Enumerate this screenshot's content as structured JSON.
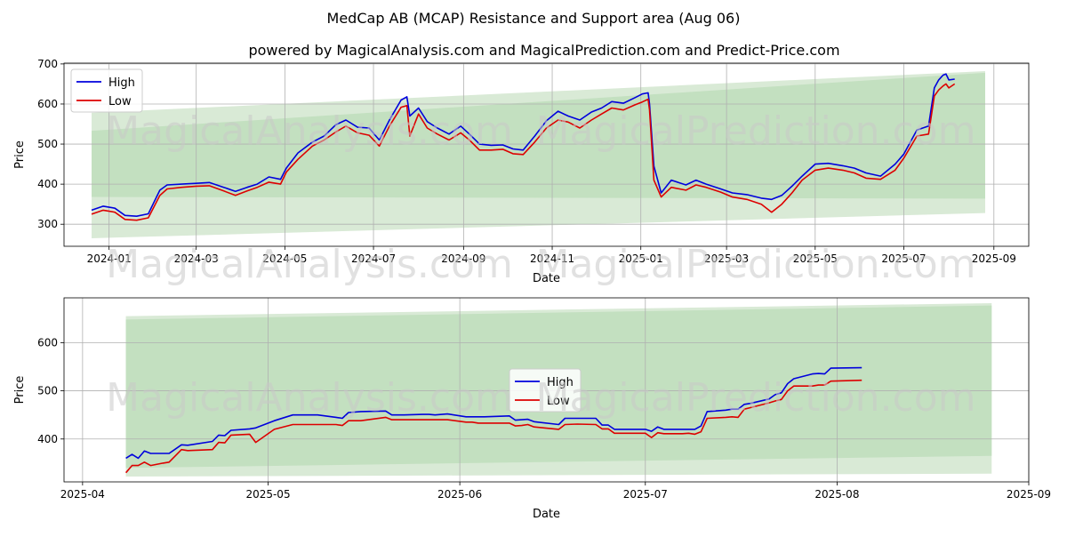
{
  "title": "MedCap AB (MCAP) Resistance and Support area (Aug 06)",
  "subtitle": "powered by MagicalAnalysis.com and MagicalPrediction.com and Predict-Price.com",
  "watermark_left": "MagicalAnalysis.com",
  "watermark_right": "MagicalPrediction.com",
  "colors": {
    "high": "#0000dd",
    "low": "#dd0000",
    "band_outer": "#d9ead6",
    "band_inner": "#c3e0c0",
    "grid": "#b0b0b0"
  },
  "chart_data": [
    {
      "type": "line",
      "title": "MedCap AB (MCAP) Resistance and Support area (Aug 06)",
      "xlabel": "Date",
      "ylabel": "Price",
      "ylim": [
        245,
        702
      ],
      "xlim": [
        "2023-12-01",
        "2025-09-25"
      ],
      "x_ticks": [
        "2024-01-01",
        "2024-03-01",
        "2024-05-01",
        "2024-07-01",
        "2024-09-01",
        "2024-11-01",
        "2025-01-01",
        "2025-03-01",
        "2025-05-01",
        "2025-07-01",
        "2025-09-01"
      ],
      "x_tick_labels": [
        "2024-01",
        "2024-03",
        "2024-05",
        "2024-07",
        "2024-09",
        "2024-11",
        "2025-01",
        "2025-03",
        "2025-05",
        "2025-07",
        "2025-09"
      ],
      "y_ticks": [
        300,
        400,
        500,
        600,
        700
      ],
      "y_tick_labels": [
        "300",
        "400",
        "500",
        "600",
        "700"
      ],
      "legend": {
        "position": "top-left",
        "entries": [
          "High",
          "Low"
        ]
      },
      "bands": [
        {
          "name": "outer",
          "x": [
            "2023-12-20",
            "2025-08-26"
          ],
          "upper": [
            578,
            682
          ],
          "lower": [
            265,
            328
          ]
        },
        {
          "name": "inner",
          "x": [
            "2023-12-20",
            "2025-08-26"
          ],
          "upper": [
            533,
            678
          ],
          "lower": [
            368,
            364
          ]
        }
      ],
      "series": [
        {
          "name": "High",
          "x": [
            "2023-12-20",
            "2023-12-28",
            "2024-01-05",
            "2024-01-12",
            "2024-01-20",
            "2024-01-28",
            "2024-02-05",
            "2024-02-10",
            "2024-02-20",
            "2024-03-01",
            "2024-03-10",
            "2024-03-20",
            "2024-03-28",
            "2024-04-05",
            "2024-04-12",
            "2024-04-20",
            "2024-04-28",
            "2024-05-02",
            "2024-05-10",
            "2024-05-20",
            "2024-05-28",
            "2024-06-05",
            "2024-06-12",
            "2024-06-20",
            "2024-06-28",
            "2024-07-05",
            "2024-07-12",
            "2024-07-20",
            "2024-07-24",
            "2024-07-26",
            "2024-08-01",
            "2024-08-07",
            "2024-08-14",
            "2024-08-22",
            "2024-08-30",
            "2024-09-05",
            "2024-09-12",
            "2024-09-20",
            "2024-09-28",
            "2024-10-05",
            "2024-10-12",
            "2024-10-20",
            "2024-10-28",
            "2024-11-05",
            "2024-11-12",
            "2024-11-20",
            "2024-11-28",
            "2024-12-05",
            "2024-12-12",
            "2024-12-20",
            "2024-12-28",
            "2025-01-02",
            "2025-01-06",
            "2025-01-07",
            "2025-01-10",
            "2025-01-15",
            "2025-01-22",
            "2025-02-01",
            "2025-02-08",
            "2025-02-15",
            "2025-02-25",
            "2025-03-05",
            "2025-03-15",
            "2025-03-25",
            "2025-04-01",
            "2025-04-08",
            "2025-04-15",
            "2025-04-22",
            "2025-05-01",
            "2025-05-10",
            "2025-05-20",
            "2025-05-28",
            "2025-06-05",
            "2025-06-15",
            "2025-06-25",
            "2025-07-01",
            "2025-07-10",
            "2025-07-18",
            "2025-07-22",
            "2025-07-25",
            "2025-07-28",
            "2025-07-30",
            "2025-08-01",
            "2025-08-05"
          ],
          "values": [
            335,
            345,
            340,
            322,
            320,
            326,
            385,
            398,
            400,
            402,
            404,
            392,
            382,
            392,
            400,
            418,
            412,
            440,
            478,
            505,
            520,
            548,
            560,
            542,
            540,
            510,
            560,
            610,
            618,
            570,
            590,
            556,
            540,
            525,
            545,
            525,
            500,
            497,
            498,
            488,
            485,
            520,
            558,
            582,
            570,
            560,
            580,
            590,
            606,
            602,
            616,
            625,
            628,
            600,
            445,
            378,
            410,
            398,
            410,
            400,
            388,
            378,
            374,
            365,
            362,
            372,
            395,
            420,
            450,
            452,
            446,
            440,
            428,
            420,
            450,
            475,
            535,
            545,
            640,
            660,
            672,
            675,
            660,
            662
          ]
        },
        {
          "name": "Low",
          "x": [
            "2023-12-20",
            "2023-12-28",
            "2024-01-05",
            "2024-01-12",
            "2024-01-20",
            "2024-01-28",
            "2024-02-05",
            "2024-02-10",
            "2024-02-20",
            "2024-03-01",
            "2024-03-10",
            "2024-03-20",
            "2024-03-28",
            "2024-04-05",
            "2024-04-12",
            "2024-04-20",
            "2024-04-28",
            "2024-05-02",
            "2024-05-10",
            "2024-05-20",
            "2024-05-28",
            "2024-06-05",
            "2024-06-12",
            "2024-06-20",
            "2024-06-28",
            "2024-07-05",
            "2024-07-12",
            "2024-07-20",
            "2024-07-24",
            "2024-07-26",
            "2024-08-01",
            "2024-08-07",
            "2024-08-14",
            "2024-08-22",
            "2024-08-30",
            "2024-09-05",
            "2024-09-12",
            "2024-09-20",
            "2024-09-28",
            "2024-10-05",
            "2024-10-12",
            "2024-10-20",
            "2024-10-28",
            "2024-11-05",
            "2024-11-12",
            "2024-11-20",
            "2024-11-28",
            "2024-12-05",
            "2024-12-12",
            "2024-12-20",
            "2024-12-28",
            "2025-01-02",
            "2025-01-06",
            "2025-01-07",
            "2025-01-10",
            "2025-01-15",
            "2025-01-22",
            "2025-02-01",
            "2025-02-08",
            "2025-02-15",
            "2025-02-25",
            "2025-03-05",
            "2025-03-15",
            "2025-03-25",
            "2025-04-01",
            "2025-04-08",
            "2025-04-15",
            "2025-04-22",
            "2025-05-01",
            "2025-05-10",
            "2025-05-20",
            "2025-05-28",
            "2025-06-05",
            "2025-06-15",
            "2025-06-25",
            "2025-07-01",
            "2025-07-10",
            "2025-07-18",
            "2025-07-22",
            "2025-07-25",
            "2025-07-28",
            "2025-07-30",
            "2025-08-01",
            "2025-08-05"
          ],
          "values": [
            325,
            335,
            330,
            312,
            310,
            316,
            372,
            388,
            392,
            395,
            396,
            383,
            372,
            383,
            392,
            405,
            400,
            430,
            462,
            495,
            510,
            530,
            545,
            528,
            522,
            495,
            545,
            592,
            596,
            520,
            575,
            540,
            525,
            510,
            528,
            510,
            485,
            485,
            487,
            476,
            474,
            505,
            540,
            560,
            555,
            540,
            560,
            575,
            590,
            585,
            598,
            605,
            612,
            585,
            410,
            368,
            392,
            385,
            398,
            392,
            380,
            368,
            362,
            350,
            330,
            350,
            378,
            410,
            435,
            440,
            435,
            428,
            415,
            412,
            435,
            465,
            520,
            525,
            620,
            635,
            645,
            650,
            640,
            650
          ]
        }
      ]
    },
    {
      "type": "line",
      "title": "",
      "xlabel": "Date",
      "ylabel": "Price",
      "ylim": [
        311,
        693
      ],
      "xlim": [
        "2025-03-29",
        "2025-09-01"
      ],
      "x_ticks": [
        "2025-04-01",
        "2025-05-01",
        "2025-06-01",
        "2025-07-01",
        "2025-08-01",
        "2025-09-01"
      ],
      "x_tick_labels": [
        "2025-04",
        "2025-05",
        "2025-06",
        "2025-07",
        "2025-08",
        "2025-09"
      ],
      "y_ticks": [
        400,
        500,
        600
      ],
      "y_tick_labels": [
        "400",
        "500",
        "600"
      ],
      "legend": {
        "position": "center",
        "entries": [
          "High",
          "Low"
        ]
      },
      "bands": [
        {
          "name": "outer",
          "x": [
            "2025-04-08",
            "2025-08-26"
          ],
          "upper": [
            655,
            682
          ],
          "lower": [
            322,
            328
          ]
        },
        {
          "name": "inner",
          "x": [
            "2025-04-08",
            "2025-08-26"
          ],
          "upper": [
            648,
            677
          ],
          "lower": [
            340,
            365
          ]
        }
      ],
      "series": [
        {
          "name": "High",
          "x": [
            "2025-04-08",
            "2025-04-09",
            "2025-04-10",
            "2025-04-11",
            "2025-04-12",
            "2025-04-14",
            "2025-04-15",
            "2025-04-17",
            "2025-04-18",
            "2025-04-22",
            "2025-04-23",
            "2025-04-24",
            "2025-04-25",
            "2025-04-28",
            "2025-04-29",
            "2025-05-02",
            "2025-05-05",
            "2025-05-06",
            "2025-05-07",
            "2025-05-09",
            "2025-05-12",
            "2025-05-13",
            "2025-05-14",
            "2025-05-16",
            "2025-05-20",
            "2025-05-21",
            "2025-05-22",
            "2025-05-23",
            "2025-05-26",
            "2025-05-27",
            "2025-05-28",
            "2025-05-30",
            "2025-06-02",
            "2025-06-03",
            "2025-06-04",
            "2025-06-05",
            "2025-06-09",
            "2025-06-10",
            "2025-06-11",
            "2025-06-12",
            "2025-06-13",
            "2025-06-17",
            "2025-06-18",
            "2025-06-20",
            "2025-06-23",
            "2025-06-24",
            "2025-06-25",
            "2025-06-26",
            "2025-06-30",
            "2025-07-01",
            "2025-07-02",
            "2025-07-03",
            "2025-07-04",
            "2025-07-07",
            "2025-07-08",
            "2025-07-09",
            "2025-07-10",
            "2025-07-11",
            "2025-07-14",
            "2025-07-15",
            "2025-07-16",
            "2025-07-17",
            "2025-07-18",
            "2025-07-21",
            "2025-07-22",
            "2025-07-23",
            "2025-07-24",
            "2025-07-25",
            "2025-07-28",
            "2025-07-29",
            "2025-07-30",
            "2025-07-31",
            "2025-08-05"
          ],
          "values": [
            360,
            368,
            360,
            375,
            370,
            370,
            370,
            388,
            387,
            395,
            408,
            407,
            418,
            421,
            423,
            438,
            450,
            450,
            450,
            450,
            445,
            443,
            455,
            457,
            458,
            450,
            450,
            450,
            451,
            451,
            450,
            452,
            446,
            446,
            446,
            446,
            448,
            439,
            440,
            441,
            436,
            430,
            443,
            443,
            443,
            429,
            429,
            420,
            420,
            420,
            416,
            425,
            420,
            420,
            420,
            420,
            427,
            457,
            460,
            462,
            462,
            472,
            474,
            483,
            492,
            496,
            515,
            525,
            535,
            536,
            535,
            547,
            548
          ]
        },
        {
          "name": "Low",
          "x": [
            "2025-04-08",
            "2025-04-09",
            "2025-04-10",
            "2025-04-11",
            "2025-04-12",
            "2025-04-14",
            "2025-04-15",
            "2025-04-17",
            "2025-04-18",
            "2025-04-22",
            "2025-04-23",
            "2025-04-24",
            "2025-04-25",
            "2025-04-28",
            "2025-04-29",
            "2025-05-02",
            "2025-05-05",
            "2025-05-06",
            "2025-05-07",
            "2025-05-09",
            "2025-05-12",
            "2025-05-13",
            "2025-05-14",
            "2025-05-16",
            "2025-05-20",
            "2025-05-21",
            "2025-05-22",
            "2025-05-23",
            "2025-05-26",
            "2025-05-27",
            "2025-05-28",
            "2025-05-30",
            "2025-06-02",
            "2025-06-03",
            "2025-06-04",
            "2025-06-05",
            "2025-06-09",
            "2025-06-10",
            "2025-06-11",
            "2025-06-12",
            "2025-06-13",
            "2025-06-17",
            "2025-06-18",
            "2025-06-20",
            "2025-06-23",
            "2025-06-24",
            "2025-06-25",
            "2025-06-26",
            "2025-06-30",
            "2025-07-01",
            "2025-07-02",
            "2025-07-03",
            "2025-07-04",
            "2025-07-07",
            "2025-07-08",
            "2025-07-09",
            "2025-07-10",
            "2025-07-11",
            "2025-07-14",
            "2025-07-15",
            "2025-07-16",
            "2025-07-17",
            "2025-07-18",
            "2025-07-21",
            "2025-07-22",
            "2025-07-23",
            "2025-07-24",
            "2025-07-25",
            "2025-07-28",
            "2025-07-29",
            "2025-07-30",
            "2025-07-31",
            "2025-08-05"
          ],
          "values": [
            330,
            345,
            345,
            352,
            345,
            350,
            352,
            378,
            376,
            378,
            393,
            392,
            408,
            410,
            393,
            420,
            430,
            430,
            430,
            430,
            430,
            428,
            438,
            438,
            445,
            440,
            440,
            440,
            440,
            440,
            440,
            440,
            435,
            435,
            433,
            433,
            433,
            427,
            428,
            430,
            425,
            420,
            430,
            431,
            430,
            421,
            421,
            412,
            412,
            412,
            403,
            413,
            411,
            411,
            412,
            410,
            415,
            443,
            445,
            446,
            445,
            462,
            465,
            475,
            479,
            482,
            500,
            510,
            510,
            512,
            512,
            520,
            522
          ]
        }
      ]
    }
  ]
}
